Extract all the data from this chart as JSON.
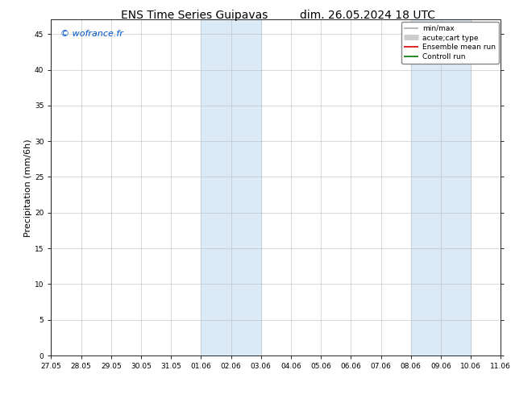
{
  "title_left": "ENS Time Series Guipavas",
  "title_right": "dim. 26.05.2024 18 UTC",
  "ylabel": "Precipitation (mm/6h)",
  "watermark": "© wofrance.fr",
  "watermark_color": "#0055cc",
  "xlim_min": 0,
  "xlim_max": 15,
  "ylim_min": 0,
  "ylim_max": 47,
  "yticks": [
    0,
    5,
    10,
    15,
    20,
    25,
    30,
    35,
    40,
    45
  ],
  "xtick_labels": [
    "27.05",
    "28.05",
    "29.05",
    "30.05",
    "31.05",
    "01.06",
    "02.06",
    "03.06",
    "04.06",
    "05.06",
    "06.06",
    "07.06",
    "08.06",
    "09.06",
    "10.06",
    "11.06"
  ],
  "shaded_regions": [
    {
      "x_start": 5,
      "x_end": 7,
      "color": "#daeaf7"
    },
    {
      "x_start": 12,
      "x_end": 14,
      "color": "#daeaf7"
    }
  ],
  "legend_entries": [
    {
      "label": "min/max",
      "color": "#aaaaaa",
      "lw": 1.2,
      "style": "line_with_caps"
    },
    {
      "label": "acute;cart type",
      "color": "#cccccc",
      "lw": 5,
      "style": "line"
    },
    {
      "label": "Ensemble mean run",
      "color": "#dd0000",
      "lw": 1.2,
      "style": "line"
    },
    {
      "label": "Controll run",
      "color": "#007700",
      "lw": 1.2,
      "style": "line"
    }
  ],
  "background_color": "#ffffff",
  "plot_bg_color": "#ffffff",
  "grid_color": "#bbbbbb",
  "tick_font_size": 6.5,
  "label_font_size": 8,
  "title_font_size": 10,
  "legend_font_size": 6.5
}
